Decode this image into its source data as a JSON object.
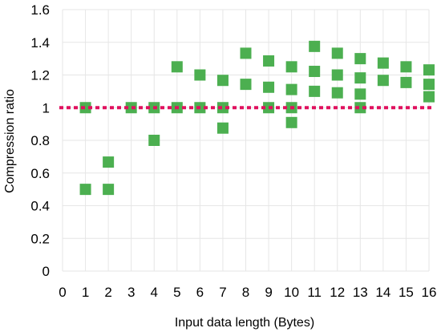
{
  "chart_data": {
    "type": "scatter",
    "title": "",
    "xlabel": "Input data length (Bytes)",
    "ylabel": "Compression ratio",
    "xlim": [
      0,
      16
    ],
    "ylim": [
      0,
      1.6
    ],
    "xticks": [
      0,
      1,
      2,
      3,
      4,
      5,
      6,
      7,
      8,
      9,
      10,
      11,
      12,
      13,
      14,
      15,
      16
    ],
    "yticks": [
      0,
      0.2,
      0.4,
      0.6,
      0.8,
      1,
      1.2,
      1.4,
      1.6
    ],
    "xtick_labels": [
      "0",
      "1",
      "2",
      "3",
      "4",
      "5",
      "6",
      "7",
      "8",
      "9",
      "10",
      "11",
      "12",
      "13",
      "14",
      "15",
      "16"
    ],
    "ytick_labels": [
      "0",
      "0.2",
      "0.4",
      "0.6",
      "0.8",
      "1",
      "1.2",
      "1.4",
      "1.6"
    ],
    "grid": true,
    "marker_color": "#4caf50",
    "reference_line": {
      "y": 1,
      "style": "dotted",
      "color": "#e0105e"
    },
    "points": [
      {
        "x": 1,
        "y": 0.5
      },
      {
        "x": 1,
        "y": 1
      },
      {
        "x": 2,
        "y": 0.5
      },
      {
        "x": 2,
        "y": 0.667
      },
      {
        "x": 3,
        "y": 1
      },
      {
        "x": 4,
        "y": 0.8
      },
      {
        "x": 4,
        "y": 1
      },
      {
        "x": 5,
        "y": 1
      },
      {
        "x": 5,
        "y": 1.25
      },
      {
        "x": 6,
        "y": 1
      },
      {
        "x": 6,
        "y": 1.2
      },
      {
        "x": 7,
        "y": 0.875
      },
      {
        "x": 7,
        "y": 1
      },
      {
        "x": 7,
        "y": 1.167
      },
      {
        "x": 8,
        "y": 1.143
      },
      {
        "x": 8,
        "y": 1.333
      },
      {
        "x": 9,
        "y": 1
      },
      {
        "x": 9,
        "y": 1.125
      },
      {
        "x": 9,
        "y": 1.286
      },
      {
        "x": 10,
        "y": 0.909
      },
      {
        "x": 10,
        "y": 1
      },
      {
        "x": 10,
        "y": 1.111
      },
      {
        "x": 10,
        "y": 1.25
      },
      {
        "x": 11,
        "y": 1.1
      },
      {
        "x": 11,
        "y": 1.222
      },
      {
        "x": 11,
        "y": 1.375
      },
      {
        "x": 12,
        "y": 1.091
      },
      {
        "x": 12,
        "y": 1.2
      },
      {
        "x": 12,
        "y": 1.333
      },
      {
        "x": 13,
        "y": 1
      },
      {
        "x": 13,
        "y": 1.083
      },
      {
        "x": 13,
        "y": 1.182
      },
      {
        "x": 13,
        "y": 1.3
      },
      {
        "x": 14,
        "y": 1.167
      },
      {
        "x": 14,
        "y": 1.273
      },
      {
        "x": 15,
        "y": 1.154
      },
      {
        "x": 15,
        "y": 1.25
      },
      {
        "x": 16,
        "y": 1.067
      },
      {
        "x": 16,
        "y": 1.143
      },
      {
        "x": 16,
        "y": 1.231
      }
    ]
  }
}
